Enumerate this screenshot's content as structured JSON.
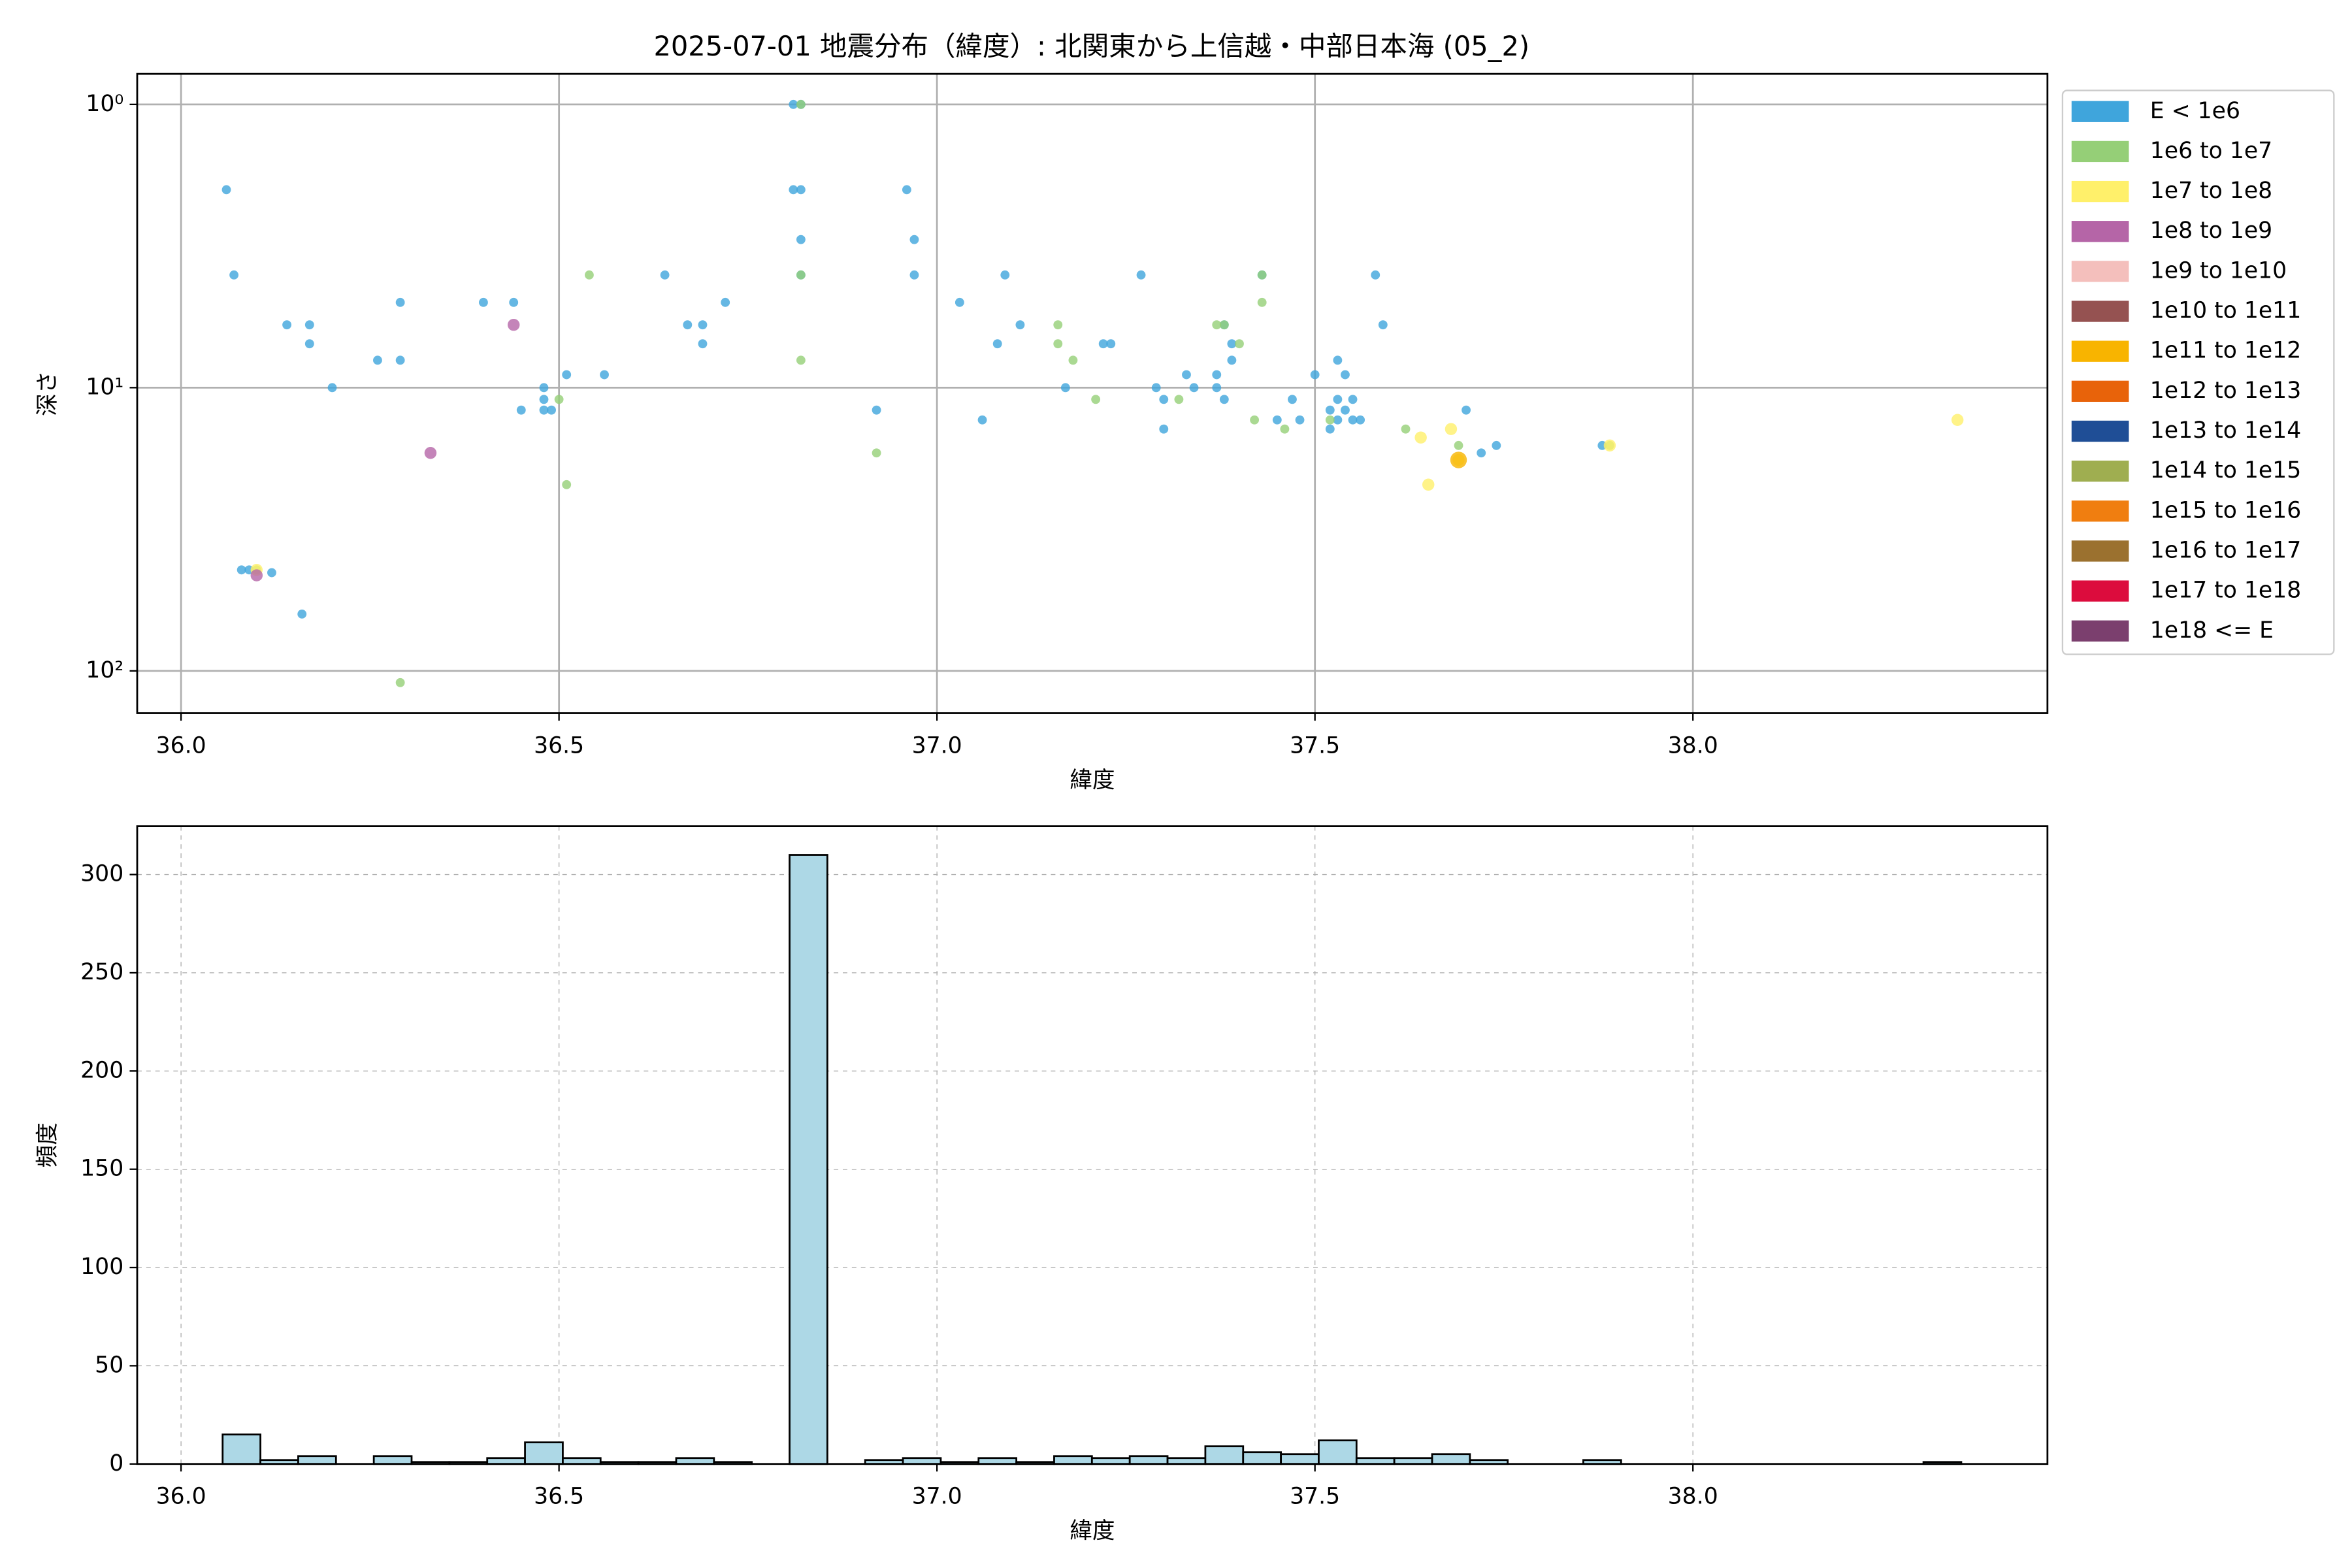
{
  "chart_data": [
    {
      "type": "scatter",
      "title": "2025-07-01 地震分布（緯度）: 北関東から上信越・中部日本海 (05_2)",
      "x_label": "緯度",
      "y_label": "深さ",
      "xlim": [
        35.942,
        38.469
      ],
      "xticks": [
        {
          "value": 36,
          "label": "36.0"
        },
        36.5,
        {
          "value": 37,
          "label": "37.0"
        },
        37.5,
        {
          "value": 38,
          "label": "38.0"
        }
      ],
      "ylim": [
        0.78,
        141
      ],
      "yscale": "log",
      "yinverted": true,
      "yticks": [
        {
          "value": 1,
          "label": "10⁰"
        },
        {
          "value": 10,
          "label": "10¹"
        },
        {
          "value": 100,
          "label": "10²"
        }
      ],
      "grid": true,
      "grid_linestyle": "solid",
      "legend_position": "outside-right",
      "series": [
        {
          "name": "E < 1e6",
          "color": "#3fa5dc",
          "x": [
            36.06,
            36.07,
            36.14,
            36.17,
            36.17,
            36.2,
            36.26,
            36.29,
            36.29,
            36.4,
            36.44,
            36.08,
            36.09,
            36.12,
            36.16,
            36.45,
            36.48,
            36.48,
            36.49,
            36.48,
            36.51,
            36.56,
            36.64,
            36.67,
            36.69,
            36.69,
            36.72,
            36.81,
            36.82,
            36.81,
            36.82,
            36.82,
            36.82,
            36.92,
            36.96,
            36.97,
            36.97,
            37.03,
            37.06,
            37.08,
            37.09,
            37.11,
            37.17,
            37.22,
            37.23,
            37.27,
            37.29,
            37.3,
            37.3,
            37.33,
            37.34,
            37.37,
            37.37,
            37.38,
            37.38,
            37.39,
            37.39,
            37.43,
            37.45,
            37.47,
            37.48,
            37.5,
            37.52,
            37.52,
            37.53,
            37.53,
            37.53,
            37.54,
            37.54,
            37.55,
            37.55,
            37.56,
            37.58,
            37.59,
            37.7,
            37.72,
            37.74,
            37.88
          ],
          "values": [
            2,
            4,
            6,
            6,
            7,
            10,
            8,
            5,
            8,
            5,
            5,
            44,
            44,
            45,
            63,
            12,
            10,
            11,
            12,
            12,
            9,
            9,
            4,
            6,
            6,
            7,
            5,
            1,
            1,
            2,
            2,
            3,
            4,
            12,
            2,
            3,
            4,
            5,
            13,
            7,
            4,
            6,
            10,
            7,
            7,
            4,
            10,
            11,
            14,
            9,
            10,
            9,
            10,
            11,
            6,
            8,
            7,
            4,
            13,
            11,
            13,
            9,
            14,
            12,
            11,
            8,
            13,
            9,
            12,
            11,
            13,
            13,
            4,
            6,
            12,
            17,
            16,
            16
          ]
        },
        {
          "name": "1e6 to 1e7",
          "color": "#95cf77",
          "x": [
            36.1,
            36.29,
            36.5,
            36.51,
            36.54,
            36.82,
            36.82,
            36.82,
            36.92,
            37.16,
            37.16,
            37.18,
            37.21,
            37.32,
            37.37,
            37.38,
            37.4,
            37.42,
            37.43,
            37.43,
            37.46,
            37.52,
            37.62,
            37.69,
            37.89
          ],
          "values": [
            44,
            110,
            11,
            22,
            4,
            1,
            4,
            8,
            17,
            6,
            7,
            8,
            11,
            11,
            6,
            6,
            7,
            13,
            5,
            4,
            14,
            13,
            14,
            16,
            16
          ]
        },
        {
          "name": "1e7 to 1e8",
          "color": "#fff06a",
          "x": [
            36.1,
            37.64,
            37.65,
            37.68,
            37.69,
            37.89,
            38.35
          ],
          "values": [
            44,
            15,
            22,
            14,
            18,
            16,
            13
          ]
        },
        {
          "name": "1e8 to 1e9",
          "color": "#b565a7",
          "x": [
            36.1,
            36.33,
            36.44
          ],
          "values": [
            46,
            17,
            6
          ]
        },
        {
          "name": "1e9 to 1e10",
          "color": "#f4bfbc",
          "x": [],
          "values": []
        },
        {
          "name": "1e10 to 1e11",
          "color": "#955251",
          "x": [],
          "values": []
        },
        {
          "name": "1e11 to 1e12",
          "color": "#f8b400",
          "x": [
            37.69
          ],
          "values": [
            18
          ]
        },
        {
          "name": "1e12 to 1e13",
          "color": "#e8630a",
          "x": [],
          "values": []
        },
        {
          "name": "1e13 to 1e14",
          "color": "#1f4e96",
          "x": [],
          "values": []
        },
        {
          "name": "1e14 to 1e15",
          "color": "#9fae50",
          "x": [],
          "values": []
        },
        {
          "name": "1e15 to 1e16",
          "color": "#f07e10",
          "x": [],
          "values": []
        },
        {
          "name": "1e16 to 1e17",
          "color": "#9b712f",
          "x": [],
          "values": []
        },
        {
          "name": "1e17 to 1e18",
          "color": "#dc0c3d",
          "x": [],
          "values": []
        },
        {
          "name": "1e18 <= E",
          "color": "#7b3f6e",
          "x": [],
          "values": []
        }
      ]
    },
    {
      "type": "histogram",
      "x_label": "緯度",
      "y_label": "頻度",
      "color": "#add8e6",
      "xlim": [
        35.942,
        38.469
      ],
      "xticks": [
        {
          "value": 36,
          "label": "36.0"
        },
        36.5,
        {
          "value": 37,
          "label": "37.0"
        },
        37.5,
        {
          "value": 38,
          "label": "38.0"
        }
      ],
      "ylim": [
        0,
        324.6
      ],
      "yticks": [
        0,
        50,
        100,
        150,
        200,
        250,
        300
      ],
      "grid": true,
      "grid_linestyle": "dashed",
      "bins": [
        36.055,
        36.105,
        36.155,
        36.205,
        36.255,
        36.305,
        36.355,
        36.405,
        36.455,
        36.505,
        36.555,
        36.605,
        36.655,
        36.705,
        36.755,
        36.805,
        36.855,
        36.905,
        36.955,
        37.005,
        37.055,
        37.105,
        37.155,
        37.205,
        37.255,
        37.305,
        37.355,
        37.405,
        37.455,
        37.505,
        37.555,
        37.605,
        37.655,
        37.705,
        37.755,
        37.805,
        37.855,
        37.905,
        37.955,
        38.005,
        38.055,
        38.105,
        38.155,
        38.205,
        38.255,
        38.305,
        38.355
      ],
      "values": [
        15,
        2,
        4,
        0,
        4,
        1,
        1,
        3,
        11,
        3,
        1,
        1,
        3,
        1,
        0,
        310,
        0,
        2,
        3,
        1,
        3,
        1,
        4,
        3,
        4,
        3,
        9,
        6,
        5,
        12,
        3,
        3,
        5,
        2,
        0,
        0,
        2,
        0,
        0,
        0,
        0,
        0,
        0,
        0,
        0,
        1
      ]
    }
  ]
}
